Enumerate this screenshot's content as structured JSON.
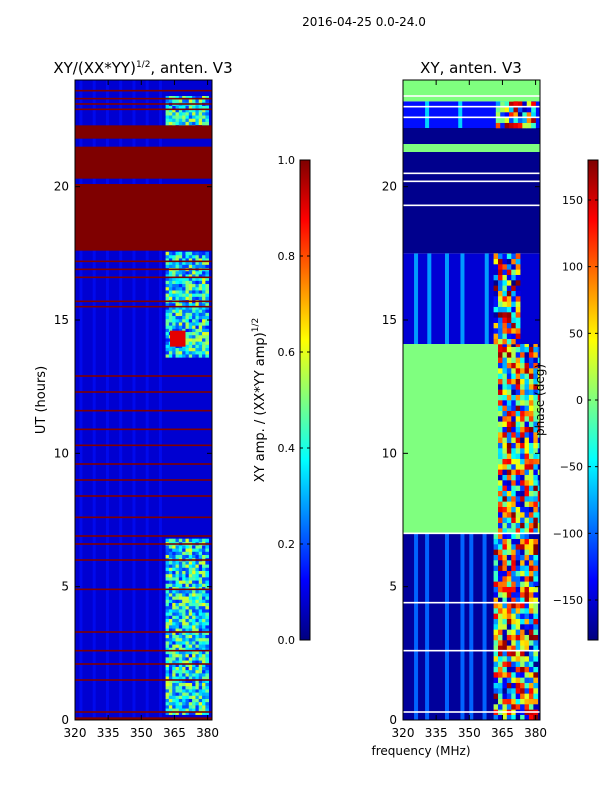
{
  "figure": {
    "suptitle": "2016-04-25 0.0-24.0",
    "xlabel": "frequency (MHz)"
  },
  "colors": {
    "jet": [
      "#00007f",
      "#0000ff",
      "#007fff",
      "#00ffff",
      "#7fff7f",
      "#ffff00",
      "#ff7f00",
      "#ff0000",
      "#7f0000"
    ],
    "dark_red": "#7f0000",
    "navy": "#00007f",
    "green": "#7fff7f",
    "white": "#ffffff"
  },
  "chart_data": [
    {
      "type": "heatmap",
      "title_main": "XY/(XX*YY)",
      "title_sup": "1/2",
      "title_tail": ", anten. V3",
      "ylabel": "UT (hours)",
      "xlim": [
        320,
        382
      ],
      "ylim": [
        0,
        24
      ],
      "xticks": [
        320,
        335,
        350,
        365,
        380
      ],
      "yticks": [
        0,
        5,
        10,
        15,
        20
      ],
      "background_level": 0.08,
      "saturated_bands_hours": [
        [
          17.6,
          20.1
        ],
        [
          20.3,
          21.5
        ],
        [
          21.8,
          22.3
        ],
        [
          0.0,
          0.1
        ]
      ],
      "thin_line_hours": [
        0.3,
        1.5,
        2.1,
        2.6,
        3.3,
        4.9,
        6.0,
        6.6,
        6.9,
        7.6,
        8.4,
        9.0,
        9.6,
        10.3,
        10.9,
        11.6,
        12.3,
        12.9,
        15.5,
        15.7,
        16.6,
        16.9,
        17.2,
        22.9,
        23.1,
        23.3,
        23.6
      ],
      "bright_region_mhz": [
        361,
        380
      ],
      "bright_region_hours": [
        [
          0.2,
          6.8
        ],
        [
          13.6,
          17.5
        ],
        [
          22.2,
          23.3
        ]
      ],
      "hotspot": {
        "mhz": [
          363,
          370
        ],
        "hours": [
          14.0,
          14.6
        ],
        "level": 0.9
      },
      "colorbar": {
        "label_main": "XY amp. / (XX*YY amp)",
        "label_sup": "1/2",
        "min": 0.0,
        "max": 1.0,
        "ticks": [
          "0.0",
          "0.2",
          "0.4",
          "0.6",
          "0.8",
          "1.0"
        ],
        "tick_values": [
          0.0,
          0.2,
          0.4,
          0.6,
          0.8,
          1.0
        ]
      }
    },
    {
      "type": "heatmap",
      "title_main": "XY, anten. V3",
      "ylabel": "phase (deg)",
      "xlim": [
        320,
        382
      ],
      "ylim": [
        0,
        24
      ],
      "xticks": [
        320,
        335,
        350,
        365,
        380
      ],
      "yticks": [
        0,
        5,
        10,
        15,
        20
      ],
      "segments": [
        {
          "hours": [
            0.0,
            7.0
          ],
          "pattern": "stripes",
          "base": -170,
          "stripe_mhz": [
            325,
            330,
            339,
            346,
            350,
            356
          ],
          "hot_mhz": [
            361,
            380
          ]
        },
        {
          "hours": [
            7.0,
            14.1
          ],
          "pattern": "flat",
          "base": 0,
          "hot_mhz": [
            363,
            382
          ]
        },
        {
          "hours": [
            14.1,
            17.5
          ],
          "pattern": "stripes",
          "base": -150,
          "stripe_mhz": [
            325,
            331,
            339,
            346,
            357
          ],
          "hot_mhz": [
            361,
            372
          ]
        },
        {
          "hours": [
            17.5,
            21.3
          ],
          "pattern": "flat",
          "base": -175,
          "hot_mhz": []
        },
        {
          "hours": [
            21.3,
            21.6
          ],
          "pattern": "flat",
          "base": 0,
          "hot_mhz": []
        },
        {
          "hours": [
            21.6,
            22.2
          ],
          "pattern": "flat",
          "base": -175,
          "hot_mhz": []
        },
        {
          "hours": [
            22.2,
            23.2
          ],
          "pattern": "stripes",
          "base": -130,
          "stripe_mhz": [
            330,
            345
          ],
          "hot_mhz": [
            362,
            380
          ]
        },
        {
          "hours": [
            23.2,
            24.0
          ],
          "pattern": "flat",
          "base": 0,
          "hot_mhz": []
        }
      ],
      "white_line_hours": [
        0.3,
        2.6,
        4.4,
        7.0,
        19.3,
        20.2,
        20.5,
        22.6,
        23.0,
        23.4
      ],
      "colorbar": {
        "label_main": "phase (deg)",
        "min": -180,
        "max": 180,
        "ticks": [
          "150",
          "100",
          "50",
          "0",
          "−50",
          "−100",
          "−150"
        ],
        "tick_values": [
          150,
          100,
          50,
          0,
          -50,
          -100,
          -150
        ]
      }
    }
  ]
}
